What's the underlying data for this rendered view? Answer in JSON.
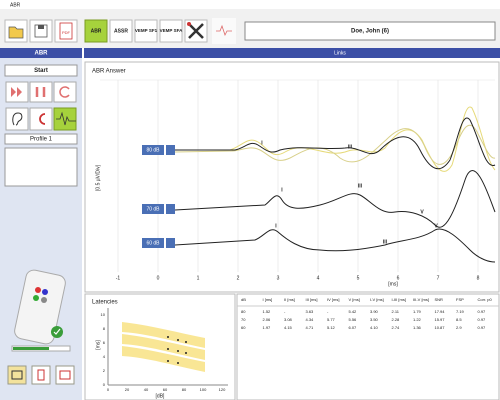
{
  "window": {
    "title": "ABR"
  },
  "toolbar": {
    "buttons": [
      "PDF",
      "ABR",
      "ASSR",
      "VEMP SF1",
      "VEMP SFA"
    ],
    "patient": "Doe, John (6)"
  },
  "left_panel": {
    "header": "ABR",
    "start": "Start",
    "profile": "Profile 1"
  },
  "main": {
    "tab": "Links",
    "graph": {
      "title": "ABR Answer",
      "y_label": "[0.5 µV/Div]",
      "x_label": "[ms]",
      "x_ticks": [
        "-1",
        "0",
        "1",
        "2",
        "3",
        "4",
        "5",
        "6",
        "7",
        "8"
      ],
      "levels": [
        "80 dB",
        "70 dB",
        "60 dB"
      ],
      "peaks": [
        [
          "I",
          "III"
        ],
        [
          "I",
          "III",
          "V"
        ],
        [
          "I",
          "III",
          "V"
        ]
      ]
    }
  },
  "latencies": {
    "title": "Latencies",
    "y_label": "[ms]",
    "x_label": "[dB]",
    "y_ticks": [
      "0",
      "2",
      "4",
      "6",
      "8",
      "10"
    ],
    "x_ticks": [
      "0",
      "20",
      "40",
      "60",
      "80",
      "100",
      "120"
    ]
  },
  "table": {
    "header": [
      "dB",
      "I [ms]",
      "II [ms]",
      "III [ms]",
      "IV [ms]",
      "V [ms]",
      "I-V [ms]",
      "I-III [ms]",
      "III-V [ms]",
      "SNR",
      "FSP",
      "Corr. p0"
    ],
    "rows": [
      [
        "80",
        "1.52",
        "-",
        "3.63",
        "-",
        "5.42",
        "3.90",
        "2.11",
        "1.79",
        "17.94",
        "7.19",
        "0.97"
      ],
      [
        "70",
        "2.06",
        "3.08",
        "4.34",
        "5.77",
        "5.56",
        "3.50",
        "2.28",
        "1.22",
        "15.97",
        "8.5",
        "0.97"
      ],
      [
        "60",
        "1.97",
        "4.15",
        "4.71",
        "5.12",
        "6.07",
        "4.10",
        "2.74",
        "1.36",
        "10.87",
        "2.9",
        "0.97"
      ]
    ]
  }
}
